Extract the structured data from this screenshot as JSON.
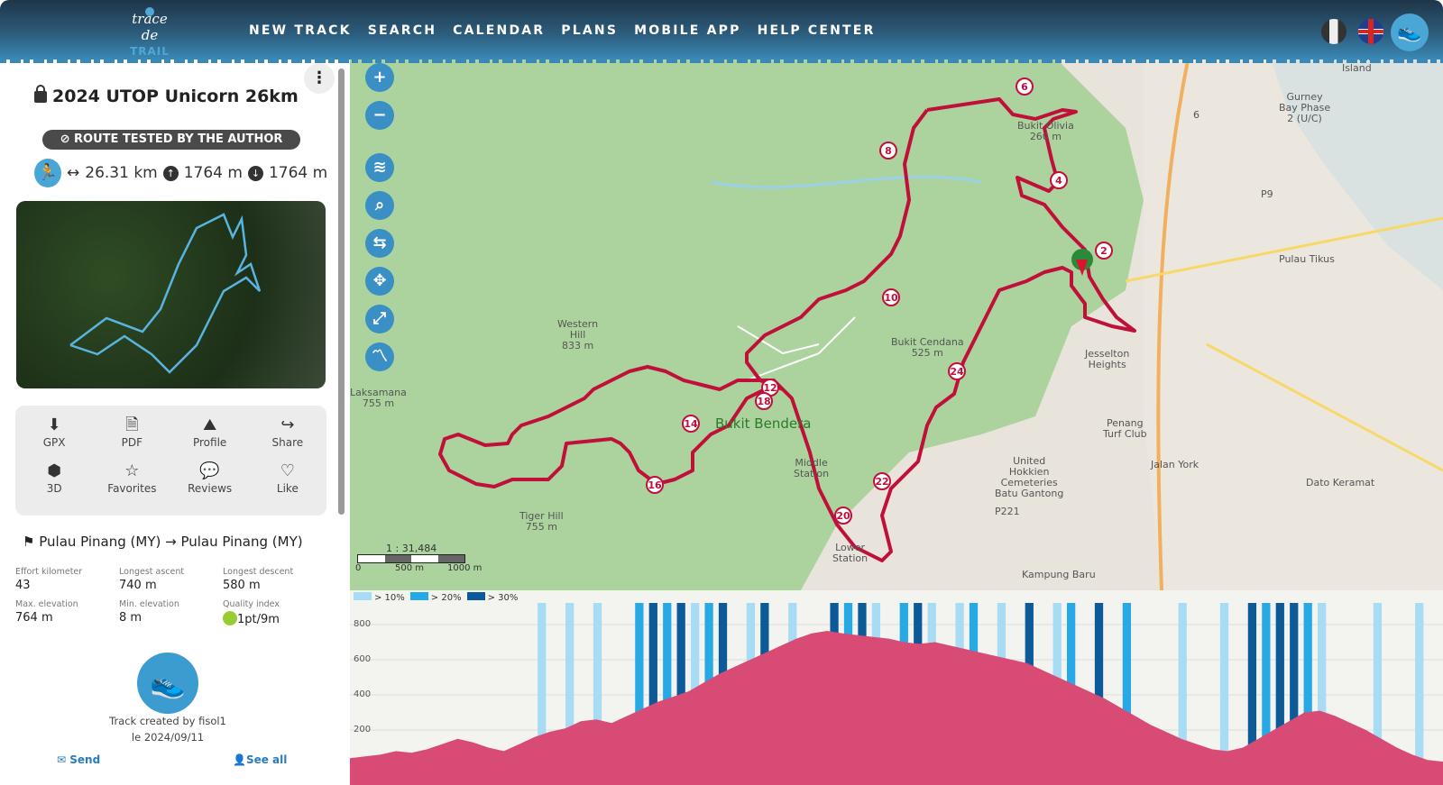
{
  "header": {
    "logo_text": "Trace de TRAIL",
    "nav": [
      "NEW TRACK",
      "SEARCH",
      "CALENDAR",
      "PLANS",
      "MOBILE APP",
      "HELP CENTER"
    ],
    "languages": [
      "Italian",
      "English"
    ]
  },
  "track": {
    "title": "2024 UTOP Unicorn 26km",
    "badge": "ROUTE TESTED BY THE AUTHOR",
    "distance": "26.31 km",
    "ascent": "1764 m",
    "descent": "1764 m",
    "actions": [
      {
        "label": "GPX",
        "icon": "download-icon"
      },
      {
        "label": "PDF",
        "icon": "pdf-icon"
      },
      {
        "label": "Profile",
        "icon": "profile-icon"
      },
      {
        "label": "Share",
        "icon": "share-icon"
      },
      {
        "label": "3D",
        "icon": "cube-icon"
      },
      {
        "label": "Favorites",
        "icon": "star-icon"
      },
      {
        "label": "Reviews",
        "icon": "comment-icon"
      },
      {
        "label": "Like",
        "icon": "heart-icon"
      }
    ],
    "start": "Pulau Pinang (MY)",
    "end": "Pulau Pinang (MY)",
    "stats": [
      {
        "label": "Effort kilometer",
        "value": "43"
      },
      {
        "label": "Longest ascent",
        "value": "740 m"
      },
      {
        "label": "Longest descent",
        "value": "580 m"
      },
      {
        "label": "Max. elevation",
        "value": "764 m"
      },
      {
        "label": "Min. elevation",
        "value": "8 m"
      },
      {
        "label": "Quality index",
        "value": "1pt/9m"
      }
    ],
    "created_by": "Track created by fisol1",
    "created_on": "le 2024/09/11",
    "send": "Send",
    "see_all": "See all"
  },
  "map": {
    "scale_ratio": "1 : 31,484",
    "scale_ticks": [
      "0",
      "500 m",
      "1000 m"
    ],
    "places": [
      "Andaman\nIsland",
      "Gurney\nBay Phase\n2 (U/C)",
      "Bukit Olivia\n260 m",
      "Pulau Tikus",
      "Western\nHill\n833 m",
      "Bukit Cendana\n525 m",
      "Jesselton\nHeights",
      "Laksamana\n755 m",
      "Bukit Bendera",
      "Penang\nTurf Club",
      "Middle\nStation",
      "United\nHokkien\nCemeteries\nBatu Gantong",
      "Tiger Hill\n755 m",
      "Lower\nStation",
      "Kampung Baru",
      "Dato Keramat",
      "Jalan York",
      "P221",
      "P9",
      "6"
    ],
    "checkpoints": [
      "2",
      "4",
      "6",
      "8",
      "10",
      "12",
      "14",
      "16",
      "18",
      "20",
      "22",
      "24"
    ],
    "track_color": "#c0103a"
  },
  "profile": {
    "legend": [
      "> 10%",
      "> 20%",
      "> 30%"
    ],
    "legend_colors": [
      "#a8dcf5",
      "#27a9e6",
      "#0d5a99"
    ],
    "y_ticks": [
      "800",
      "600",
      "400",
      "200"
    ],
    "fill_color": "#d84b74",
    "elevations": [
      40,
      50,
      60,
      80,
      70,
      90,
      120,
      150,
      130,
      100,
      80,
      120,
      160,
      190,
      210,
      250,
      260,
      240,
      280,
      320,
      360,
      390,
      420,
      470,
      520,
      560,
      600,
      640,
      680,
      720,
      750,
      764,
      750,
      740,
      730,
      720,
      700,
      690,
      700,
      680,
      660,
      640,
      620,
      600,
      580,
      540,
      500,
      460,
      420,
      380,
      330,
      280,
      230,
      190,
      150,
      120,
      90,
      80,
      100,
      150,
      200,
      250,
      300,
      310,
      280,
      240,
      200,
      150,
      100,
      60,
      30,
      20
    ],
    "slope_bins": [
      0,
      0,
      0,
      0,
      0,
      0,
      0,
      1,
      0,
      1,
      0,
      1,
      0,
      0,
      2,
      3,
      2,
      3,
      1,
      2,
      3,
      0,
      1,
      3,
      0,
      1,
      0,
      0,
      3,
      2,
      3,
      1,
      0,
      2,
      3,
      1,
      0,
      1,
      2,
      0,
      1,
      0,
      3,
      0,
      1,
      2,
      0,
      3,
      0,
      2,
      0,
      0,
      0,
      1,
      0,
      0,
      1,
      0,
      3,
      2,
      3,
      3,
      2,
      1,
      0,
      0,
      0,
      1,
      0,
      0,
      1,
      0
    ]
  }
}
